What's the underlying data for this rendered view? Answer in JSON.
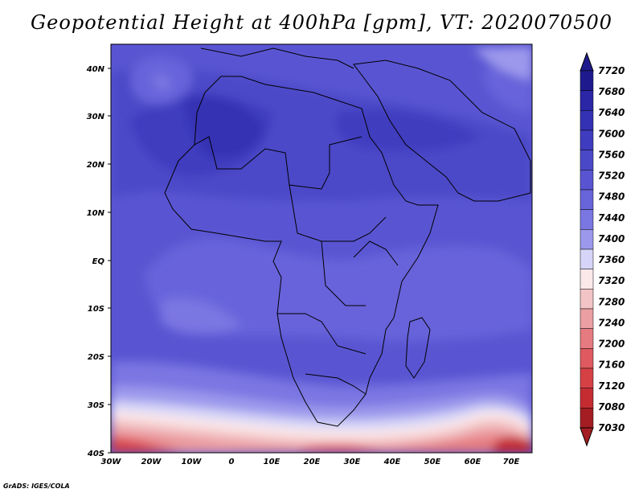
{
  "title": "Geopotential Height at 400hPa [gpm], VT: 2020070500",
  "credit": "GrADS: IGES/COLA",
  "lat_labels": [
    "40N",
    "30N",
    "20N",
    "10N",
    "EQ",
    "10S",
    "20S",
    "30S",
    "40S"
  ],
  "lon_labels": [
    "30W",
    "20W",
    "10W",
    "0",
    "10E",
    "20E",
    "30E",
    "40E",
    "50E",
    "60E",
    "70E"
  ],
  "colorbar": {
    "labels": [
      "7720",
      "7680",
      "7640",
      "7600",
      "7560",
      "7520",
      "7480",
      "7440",
      "7400",
      "7360",
      "7320",
      "7280",
      "7240",
      "7200",
      "7160",
      "7120",
      "7080",
      "7030"
    ],
    "colors": [
      "#1e1a8e",
      "#2a26a6",
      "#3431b4",
      "#3f3cbf",
      "#4b48c8",
      "#5955d2",
      "#6864da",
      "#7a76e2",
      "#9c99ec",
      "#d6d5f8",
      "#fbe9ea",
      "#f3c4c6",
      "#eb9fa3",
      "#e57b80",
      "#de5a60",
      "#d64146",
      "#c42c32",
      "#a31d22"
    ]
  }
}
